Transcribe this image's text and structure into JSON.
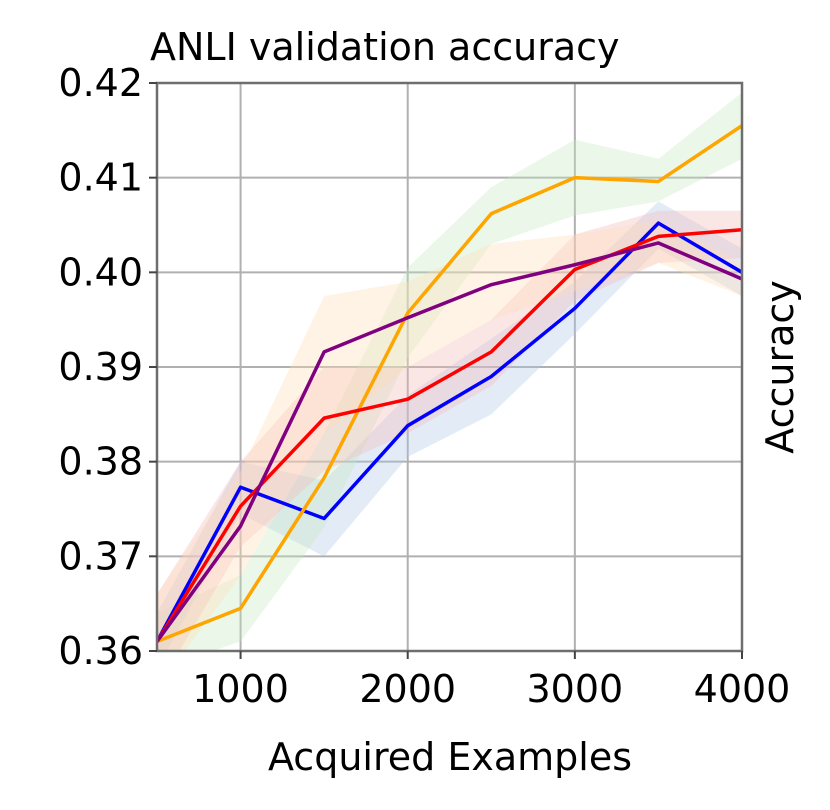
{
  "chart_data": {
    "type": "line",
    "title": "ANLI validation accuracy",
    "xlabel": "Acquired Examples",
    "ylabel": "Accuracy",
    "xlim": [
      500,
      4000
    ],
    "ylim": [
      0.36,
      0.42
    ],
    "xticks": [
      1000,
      2000,
      3000,
      4000
    ],
    "xtick_labels": [
      "1000",
      "2000",
      "3000",
      "4000"
    ],
    "yticks": [
      0.36,
      0.37,
      0.38,
      0.39,
      0.4,
      0.41,
      0.42
    ],
    "ytick_labels": [
      "0.36",
      "0.37",
      "0.38",
      "0.39",
      "0.40",
      "0.41",
      "0.42"
    ],
    "grid": true,
    "x": [
      500,
      1000,
      1500,
      2000,
      2500,
      3000,
      3500,
      4000
    ],
    "series": [
      {
        "color": "#0000ff",
        "band_color": "#aec7e8",
        "values": [
          0.361,
          0.3773,
          0.374,
          0.3838,
          0.389,
          0.3962,
          0.4052,
          0.4
        ],
        "lower": [
          0.358,
          0.3745,
          0.37,
          0.3805,
          0.385,
          0.3935,
          0.4025,
          0.3975
        ],
        "upper": [
          0.364,
          0.38,
          0.378,
          0.387,
          0.393,
          0.399,
          0.4075,
          0.4025
        ]
      },
      {
        "color": "#ffa500",
        "band_color": "#c7e9c0",
        "values": [
          0.361,
          0.3645,
          0.3783,
          0.3957,
          0.4062,
          0.41,
          0.4096,
          0.4155
        ],
        "lower": [
          0.358,
          0.361,
          0.373,
          0.391,
          0.403,
          0.406,
          0.4075,
          0.412
        ],
        "upper": [
          0.364,
          0.368,
          0.383,
          0.4005,
          0.409,
          0.414,
          0.412,
          0.419
        ]
      },
      {
        "color": "#ff0000",
        "band_color": "#f4b6b6",
        "values": [
          0.361,
          0.3753,
          0.3846,
          0.3866,
          0.3916,
          0.4003,
          0.4038,
          0.4045
        ],
        "lower": [
          0.356,
          0.371,
          0.379,
          0.383,
          0.388,
          0.397,
          0.401,
          0.4015
        ],
        "upper": [
          0.366,
          0.38,
          0.39,
          0.39,
          0.395,
          0.404,
          0.4065,
          0.4065
        ]
      },
      {
        "color": "#800080",
        "band_color": "#ffdcb8",
        "values": [
          0.361,
          0.3732,
          0.3916,
          0.3952,
          0.3987,
          0.4008,
          0.4031,
          0.3993
        ],
        "lower": [
          0.356,
          0.368,
          0.383,
          0.39,
          0.395,
          0.398,
          0.401,
          0.3975
        ],
        "upper": [
          0.366,
          0.379,
          0.3975,
          0.399,
          0.403,
          0.404,
          0.4055,
          0.401
        ]
      }
    ]
  }
}
